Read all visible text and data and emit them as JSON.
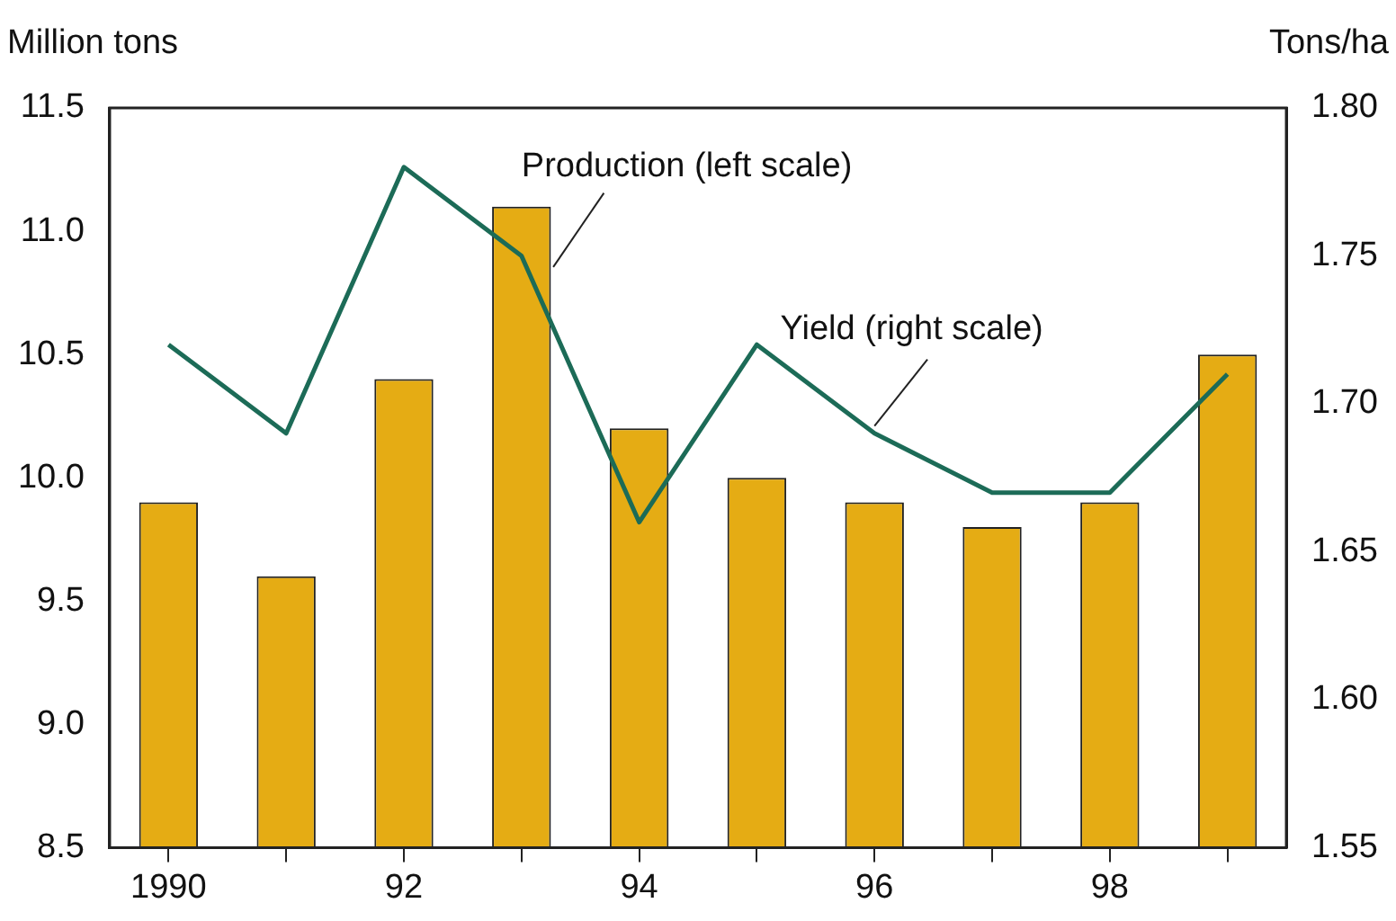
{
  "chart_data": {
    "type": "bar",
    "ylabel": "Million tons",
    "y2label": "Tons/ha",
    "categories": [
      "1990",
      null,
      "92",
      null,
      "94",
      null,
      "96",
      null,
      "98",
      null
    ],
    "series": [
      {
        "name": "Production (left scale)",
        "color": "#e5ac14",
        "values": [
          9.9,
          9.6,
          10.4,
          11.1,
          10.2,
          10.0,
          9.9,
          9.8,
          9.9,
          10.5
        ]
      },
      {
        "name": "Yield (right scale)",
        "type": "line",
        "axis": "y2",
        "color": "#1c6b57",
        "values": [
          1.72,
          1.69,
          1.78,
          1.75,
          1.66,
          1.72,
          1.69,
          1.67,
          1.67,
          1.71
        ]
      }
    ],
    "ylim": [
      8.5,
      11.5
    ],
    "yticks": [
      {
        "value": 8.5,
        "label": "8.5"
      },
      {
        "value": 9,
        "label": "9.0"
      },
      {
        "value": 9.5,
        "label": "9.5"
      },
      {
        "value": 10,
        "label": "10.0"
      },
      {
        "value": 10.5,
        "label": "10.5"
      },
      {
        "value": 11,
        "label": "11.0"
      },
      {
        "value": 11.5,
        "label": "11.5"
      }
    ],
    "y2lim": [
      1.55,
      1.8
    ],
    "y2ticks": [
      {
        "value": 1.55,
        "label": "1.55"
      },
      {
        "value": 1.6,
        "label": "1.60"
      },
      {
        "value": 1.65,
        "label": "1.65"
      },
      {
        "value": 1.7,
        "label": "1.70"
      },
      {
        "value": 1.75,
        "label": "1.75"
      },
      {
        "value": 1.8,
        "label": "1.80"
      }
    ],
    "grid": false,
    "legend": false,
    "marker": "none",
    "line_style": "solid"
  }
}
